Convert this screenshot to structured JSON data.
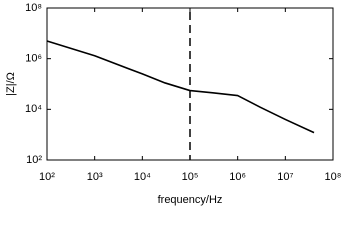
{
  "chart_data": {
    "type": "line",
    "x_label": "frequency/Hz",
    "y_label": "|Z|/Ω",
    "x": [
      100,
      1000,
      10000,
      30000,
      100000,
      300000,
      1000000,
      3000000,
      10000000,
      40000000
    ],
    "series": [
      {
        "color": "#000000",
        "values": [
          5000000,
          1300000,
          250000,
          110000,
          55000,
          45000,
          35000,
          12000,
          4000,
          1200
        ]
      }
    ],
    "xlim": [
      100,
      100000000
    ],
    "ylim": [
      100,
      100000000
    ],
    "xscale": "log",
    "yscale": "log",
    "xticks": [
      {
        "value": 100,
        "label": "10²"
      },
      {
        "value": 1000,
        "label": "10³"
      },
      {
        "value": 10000,
        "label": "10⁴"
      },
      {
        "value": 100000,
        "label": "10⁵"
      },
      {
        "value": 1000000,
        "label": "10⁶"
      },
      {
        "value": 10000000,
        "label": "10⁷"
      },
      {
        "value": 100000000,
        "label": "10⁸"
      }
    ],
    "yticks": [
      {
        "value": 100,
        "label": "10²"
      },
      {
        "value": 10000,
        "label": "10⁴"
      },
      {
        "value": 1000000,
        "label": "10⁶"
      },
      {
        "value": 100000000,
        "label": "10⁸"
      }
    ],
    "vline": 100000
  }
}
